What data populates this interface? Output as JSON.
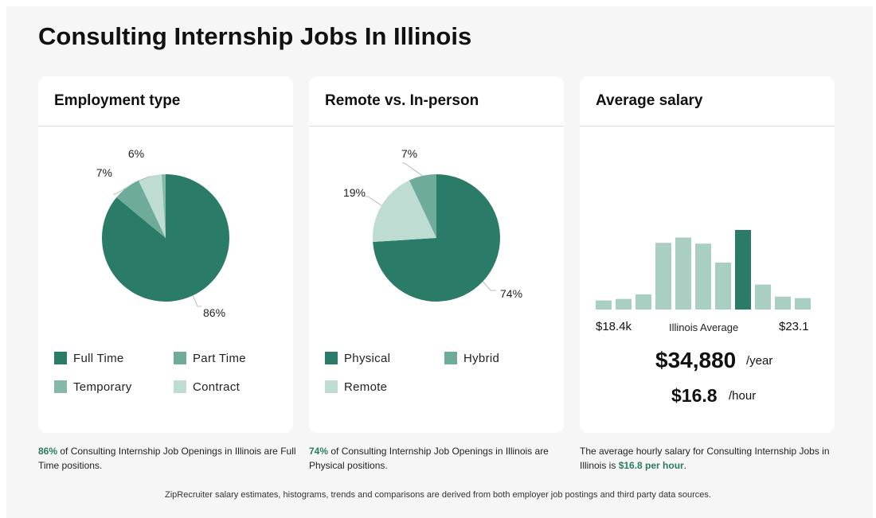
{
  "page_title": "Consulting Internship Jobs In Illinois",
  "employment": {
    "title": "Employment type",
    "legend": [
      {
        "label": "Full Time",
        "color": "#2a7c68"
      },
      {
        "label": "Part Time",
        "color": "#6fab9b"
      },
      {
        "label": "Temporary",
        "color": "#86b8aa"
      },
      {
        "label": "Contract",
        "color": "#bfdcd3"
      }
    ],
    "caption_pct": "86%",
    "caption_text": " of Consulting Internship Job Openings in Illinois are Full Time positions."
  },
  "remote": {
    "title": "Remote vs. In-person",
    "legend": [
      {
        "label": "Physical",
        "color": "#2a7c68"
      },
      {
        "label": "Hybrid",
        "color": "#6fab9b"
      },
      {
        "label": "Remote",
        "color": "#bfdcd3"
      }
    ],
    "caption_pct": "74%",
    "caption_text": " of Consulting Internship Job Openings in Illinois are Physical positions."
  },
  "salary": {
    "title": "Average salary",
    "min_label": "$18.4k",
    "mid_label": "Illinois Average",
    "max_label": "$23.1",
    "yearly": "$34,880",
    "yearly_unit": "/year",
    "hourly": "$16.8",
    "hourly_unit": "/hour",
    "caption_text": "The average hourly salary for Consulting Internship Jobs in Illinois is ",
    "caption_highlight": "$16.8 per hour",
    "caption_end": "."
  },
  "footer": "ZipRecruiter salary estimates, histograms, trends and comparisons are derived from both employer job postings and third party data sources.",
  "chart_data": [
    {
      "type": "pie",
      "title": "Employment type",
      "categories": [
        "Full Time",
        "Part Time",
        "Temporary",
        "Contract"
      ],
      "values": [
        86,
        7,
        6,
        1
      ],
      "value_labels": [
        "86%",
        "7%",
        "6%",
        ""
      ],
      "colors": [
        "#2a7c68",
        "#6fab9b",
        "#bfdcd3",
        "#86b8aa"
      ]
    },
    {
      "type": "pie",
      "title": "Remote vs. In-person",
      "categories": [
        "Physical",
        "Remote",
        "Hybrid"
      ],
      "values": [
        74,
        19,
        7
      ],
      "value_labels": [
        "74%",
        "19%",
        "7%"
      ],
      "colors": [
        "#2a7c68",
        "#bfdcd3",
        "#6fab9b"
      ]
    },
    {
      "type": "bar",
      "title": "Average salary",
      "values": [
        12,
        14,
        20,
        88,
        95,
        87,
        62,
        105,
        33,
        17,
        15
      ],
      "highlight_index": 7,
      "colors": {
        "normal": "#a9cfc3",
        "highlight": "#2a7c68"
      },
      "x_range_labels": [
        "$18.4k",
        "$23.1"
      ],
      "ylim": [
        0,
        105
      ]
    }
  ]
}
